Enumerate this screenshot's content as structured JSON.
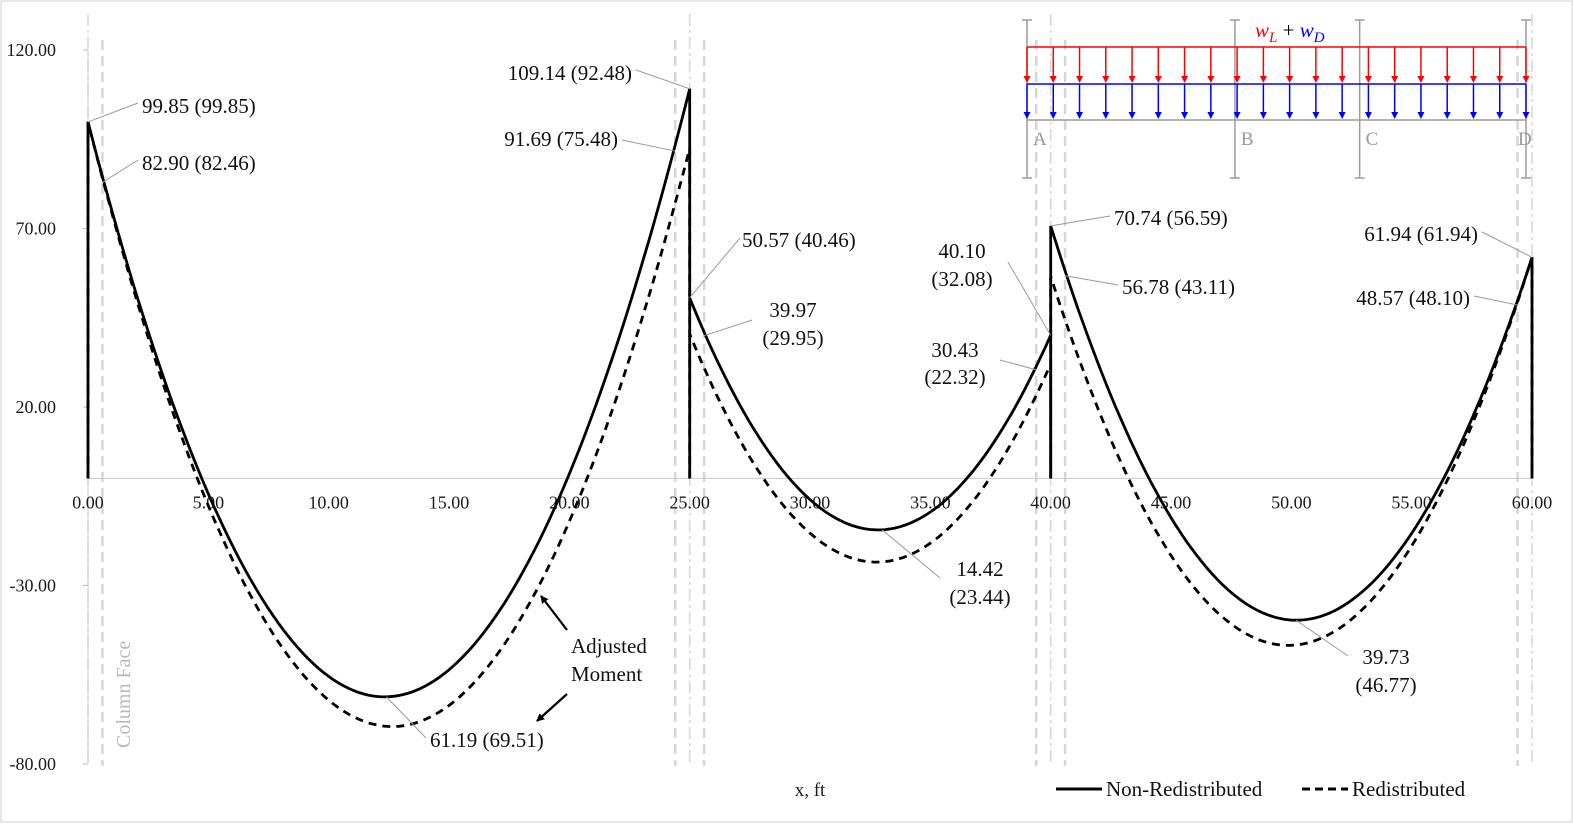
{
  "chart_data": {
    "type": "line",
    "xlabel": "x, ft",
    "ylabel": "",
    "xlim": [
      0,
      60
    ],
    "ylim": [
      -80,
      120
    ],
    "x_ticks": [
      "0.00",
      "5.00",
      "10.00",
      "15.00",
      "20.00",
      "25.00",
      "30.00",
      "35.00",
      "40.00",
      "45.00",
      "50.00",
      "55.00",
      "60.00"
    ],
    "y_ticks": [
      "-80.00",
      "-30.00",
      "20.00",
      "70.00",
      "120.00"
    ],
    "grid": false,
    "legend_position": "bottom-right",
    "legend": [
      "Non-Redistributed",
      "Redistributed"
    ],
    "column_face_label": "Column Face",
    "supports_x": [
      0,
      25,
      40,
      60
    ],
    "column_face_x": [
      0.6,
      24.4,
      25.6,
      39.4,
      40.6,
      59.4
    ],
    "series": [
      {
        "name": "Non-Redistributed",
        "style": "solid",
        "spans": [
          {
            "x0": 0,
            "x1": 25,
            "m0": 99.85,
            "m1": 109.14,
            "min": -61.19
          },
          {
            "x0": 25,
            "x1": 40,
            "m0": 50.57,
            "m1": 40.1,
            "min": -14.42
          },
          {
            "x0": 40,
            "x1": 60,
            "m0": 70.74,
            "m1": 61.94,
            "min": -39.73
          }
        ]
      },
      {
        "name": "Redistributed",
        "style": "dashed",
        "spans": [
          {
            "x0": 0,
            "x1": 25,
            "m0": 99.85,
            "m1": 92.48,
            "min": -69.51
          },
          {
            "x0": 25,
            "x1": 40,
            "m0": 40.46,
            "m1": 32.08,
            "min": -23.44
          },
          {
            "x0": 40,
            "x1": 60,
            "m0": 56.59,
            "m1": 61.94,
            "min": -46.77
          }
        ]
      }
    ],
    "annotations": [
      {
        "text": "99.85 (99.85)",
        "x": 0,
        "y": 99.85
      },
      {
        "text": "82.90 (82.46)",
        "x": 0.6,
        "y": 82.9
      },
      {
        "text": "109.14 (92.48)",
        "x": 25,
        "y": 109.14
      },
      {
        "text": "91.69 (75.48)",
        "x": 24.4,
        "y": 91.69
      },
      {
        "text": "50.57 (40.46)",
        "x": 25,
        "y": 50.57
      },
      {
        "text": "39.97",
        "text2": "(29.95)",
        "x": 25.6,
        "y": 39.97
      },
      {
        "text": "40.10",
        "text2": "(32.08)",
        "x": 40,
        "y": 40.1
      },
      {
        "text": "30.43",
        "text2": "(22.32)",
        "x": 39.4,
        "y": 30.43
      },
      {
        "text": "70.74 (56.59)",
        "x": 40,
        "y": 70.74
      },
      {
        "text": "56.78 (43.11)",
        "x": 40.6,
        "y": 56.78
      },
      {
        "text": "61.94 (61.94)",
        "x": 60,
        "y": 61.94
      },
      {
        "text": "48.57 (48.10)",
        "x": 59.4,
        "y": 48.57
      },
      {
        "text": "61.19 (69.51)",
        "x": 12.4,
        "y": -61.19
      },
      {
        "text": "14.42",
        "text2": "(23.44)",
        "x": 33,
        "y": -14.42
      },
      {
        "text": "39.73",
        "text2": "(46.77)",
        "x": 50.2,
        "y": -39.73
      }
    ],
    "adjusted_moment_label": [
      "Adjusted",
      "Moment"
    ],
    "load_diagram": {
      "load_parts": [
        "w",
        "L",
        " + ",
        "w",
        "D"
      ],
      "live_color": "#ff0000",
      "dead_color": "#0000ff",
      "supports": [
        "A",
        "B",
        "C",
        "D"
      ]
    }
  }
}
